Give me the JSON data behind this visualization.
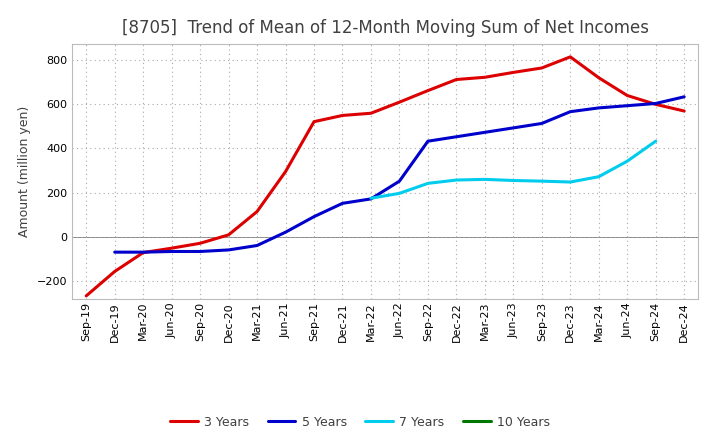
{
  "title": "[8705]  Trend of Mean of 12-Month Moving Sum of Net Incomes",
  "ylabel": "Amount (million yen)",
  "background_color": "#ffffff",
  "plot_background": "#ffffff",
  "ylim": [
    -280,
    870
  ],
  "yticks": [
    -200,
    0,
    200,
    400,
    600,
    800
  ],
  "legend_labels": [
    "3 Years",
    "5 Years",
    "7 Years",
    "10 Years"
  ],
  "legend_colors": [
    "#dd0000",
    "#0000cc",
    "#00ccee",
    "#007700"
  ],
  "x_labels": [
    "Sep-19",
    "Dec-19",
    "Mar-20",
    "Jun-20",
    "Sep-20",
    "Dec-20",
    "Mar-21",
    "Jun-21",
    "Sep-21",
    "Dec-21",
    "Mar-22",
    "Jun-22",
    "Sep-22",
    "Dec-22",
    "Mar-23",
    "Jun-23",
    "Sep-23",
    "Dec-23",
    "Mar-24",
    "Jun-24",
    "Sep-24",
    "Dec-24"
  ],
  "series_3yr": [
    -265,
    -155,
    -70,
    -50,
    -28,
    10,
    115,
    295,
    520,
    548,
    558,
    608,
    660,
    710,
    720,
    742,
    762,
    812,
    718,
    638,
    598,
    568
  ],
  "series_5yr": [
    null,
    -68,
    -68,
    -65,
    -65,
    -58,
    -38,
    22,
    92,
    152,
    172,
    252,
    432,
    452,
    472,
    492,
    512,
    565,
    582,
    592,
    602,
    632
  ],
  "series_7yr": [
    null,
    null,
    null,
    null,
    null,
    null,
    null,
    null,
    null,
    null,
    175,
    197,
    242,
    257,
    260,
    255,
    252,
    248,
    272,
    342,
    432,
    null
  ],
  "series_10yr": [
    null,
    null,
    null,
    null,
    null,
    null,
    null,
    null,
    null,
    null,
    null,
    null,
    null,
    null,
    null,
    null,
    null,
    null,
    null,
    null,
    null,
    null
  ],
  "title_color": "#404040",
  "title_fontsize": 12,
  "ylabel_fontsize": 9,
  "tick_labelsize": 8,
  "legend_fontsize": 9,
  "linewidth": 2.2,
  "grid_color": "#aaaaaa",
  "grid_linestyle": "dotted"
}
